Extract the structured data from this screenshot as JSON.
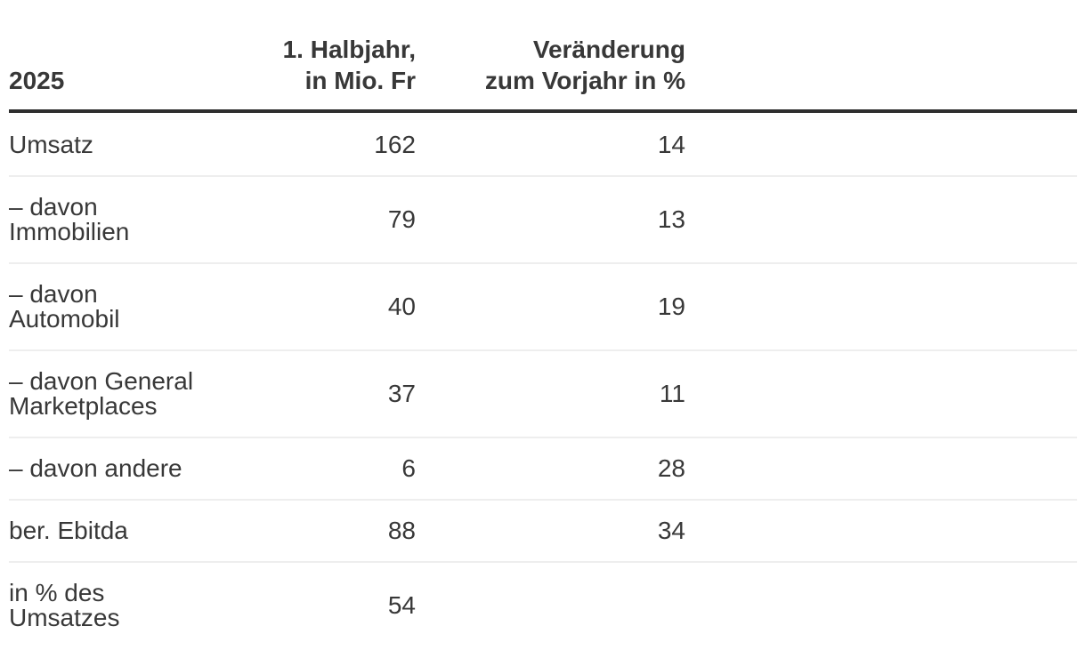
{
  "table": {
    "header": {
      "year": "2025",
      "col_mio": "1. Halbjahr,\nin Mio. Fr",
      "col_change": "Veränderung\nzum Vorjahr in %"
    },
    "rows": [
      {
        "label": "Umsatz",
        "mio": "162",
        "change": "14"
      },
      {
        "label": "– davon\nImmobilien",
        "mio": "79",
        "change": "13"
      },
      {
        "label": "– davon\nAutomobil",
        "mio": "40",
        "change": "19"
      },
      {
        "label": "– davon General\nMarketplaces",
        "mio": "37",
        "change": "11"
      },
      {
        "label": "– davon andere",
        "mio": "6",
        "change": "28"
      },
      {
        "label": "ber. Ebitda",
        "mio": "88",
        "change": "34"
      },
      {
        "label": "in % des\nUmsatzes",
        "mio": "54",
        "change": ""
      }
    ]
  },
  "colors": {
    "text": "#383838",
    "header_rule": "#2e2e2e",
    "row_divider": "#eeeeee",
    "background": "#ffffff"
  },
  "chart_data": {
    "type": "table",
    "title": "2025",
    "columns": [
      "2025",
      "1. Halbjahr, in Mio. Fr",
      "Veränderung zum Vorjahr in %"
    ],
    "rows": [
      {
        "label": "Umsatz",
        "halbjahr_mio_fr": 162,
        "veraenderung_vorjahr_pct": 14
      },
      {
        "label": "– davon Immobilien",
        "halbjahr_mio_fr": 79,
        "veraenderung_vorjahr_pct": 13
      },
      {
        "label": "– davon Automobil",
        "halbjahr_mio_fr": 40,
        "veraenderung_vorjahr_pct": 19
      },
      {
        "label": "– davon General Marketplaces",
        "halbjahr_mio_fr": 37,
        "veraenderung_vorjahr_pct": 11
      },
      {
        "label": "– davon andere",
        "halbjahr_mio_fr": 6,
        "veraenderung_vorjahr_pct": 28
      },
      {
        "label": "ber. Ebitda",
        "halbjahr_mio_fr": 88,
        "veraenderung_vorjahr_pct": 34
      },
      {
        "label": "in % des Umsatzes",
        "halbjahr_mio_fr": 54,
        "veraenderung_vorjahr_pct": null
      }
    ],
    "layout": {
      "grid": "horizontal row dividers",
      "header_rule": "thick",
      "value_alignment": "right"
    }
  }
}
